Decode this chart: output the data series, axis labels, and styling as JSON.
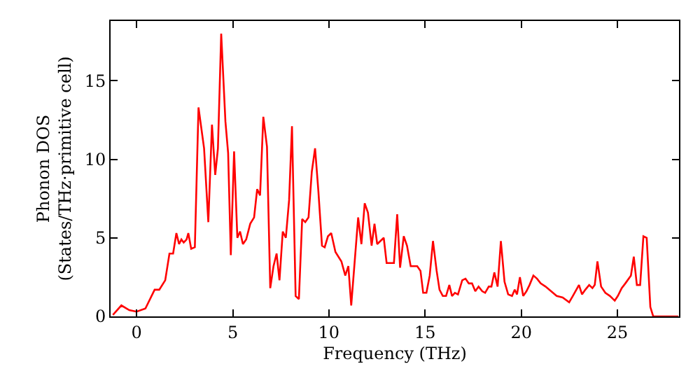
{
  "chart_data": {
    "type": "line",
    "xlabel": "Frequency (THz)",
    "ylabel": "Phonon DOS\n(States/THz·primitive cell)",
    "xlim": [
      -1.35,
      28.2
    ],
    "ylim": [
      0,
      18.8
    ],
    "xticks": [
      0,
      5,
      10,
      15,
      20,
      25
    ],
    "yticks": [
      0,
      5,
      10,
      15
    ],
    "marker": "none",
    "line_style": "solid",
    "series": [
      {
        "color": "#ff0000",
        "x": [
          -1.23,
          -0.79,
          -0.38,
          0,
          0.46,
          0.94,
          1.18,
          1.49,
          1.71,
          1.9,
          2.07,
          2.21,
          2.33,
          2.45,
          2.6,
          2.69,
          2.84,
          3.03,
          3.22,
          3.51,
          3.73,
          3.92,
          4.09,
          4.23,
          4.4,
          4.62,
          4.76,
          4.9,
          5.07,
          5.24,
          5.38,
          5.53,
          5.7,
          5.91,
          6.11,
          6.27,
          6.42,
          6.59,
          6.78,
          6.95,
          7.12,
          7.28,
          7.43,
          7.6,
          7.76,
          7.93,
          8.08,
          8.27,
          8.44,
          8.61,
          8.77,
          8.94,
          9.11,
          9.28,
          9.45,
          9.64,
          9.78,
          9.95,
          10.12,
          10.34,
          10.65,
          10.85,
          11.01,
          11.16,
          11.52,
          11.69,
          11.86,
          12.03,
          12.22,
          12.37,
          12.51,
          12.85,
          13.0,
          13.38,
          13.55,
          13.7,
          13.89,
          14.06,
          14.25,
          14.59,
          14.76,
          14.9,
          15.07,
          15.24,
          15.41,
          15.6,
          15.75,
          15.92,
          16.09,
          16.26,
          16.4,
          16.55,
          16.71,
          16.93,
          17.1,
          17.27,
          17.44,
          17.61,
          17.78,
          17.97,
          18.12,
          18.31,
          18.45,
          18.6,
          18.77,
          18.94,
          19.13,
          19.32,
          19.52,
          19.66,
          19.78,
          19.93,
          20.1,
          20.27,
          20.43,
          20.63,
          20.82,
          21.01,
          21.26,
          21.55,
          21.84,
          22.15,
          22.49,
          22.68,
          23.0,
          23.16,
          23.33,
          23.53,
          23.7,
          23.82,
          23.96,
          24.15,
          24.37,
          24.61,
          24.86,
          25.02,
          25.22,
          25.41,
          25.7,
          25.85,
          26.01,
          26.18,
          26.35,
          26.52,
          26.71,
          26.86,
          28.16
        ],
        "values": [
          0.1,
          0.7,
          0.4,
          0.3,
          0.5,
          1.7,
          1.7,
          2.3,
          4.0,
          4.0,
          5.3,
          4.6,
          4.9,
          4.7,
          4.9,
          5.3,
          4.3,
          4.4,
          13.3,
          10.7,
          6.0,
          12.2,
          9.0,
          10.7,
          18.0,
          12.4,
          10.4,
          3.9,
          10.5,
          5.0,
          5.4,
          4.6,
          4.9,
          5.9,
          6.3,
          8.1,
          7.7,
          12.7,
          10.8,
          1.8,
          3.2,
          4.0,
          2.3,
          5.4,
          5.0,
          7.4,
          12.1,
          1.3,
          1.1,
          6.2,
          6.0,
          6.3,
          9.2,
          10.7,
          8.0,
          4.5,
          4.4,
          5.1,
          5.3,
          4.1,
          3.5,
          2.6,
          3.2,
          0.7,
          6.3,
          4.6,
          7.2,
          6.6,
          4.5,
          5.9,
          4.6,
          5.0,
          3.4,
          3.4,
          6.5,
          3.1,
          5.1,
          4.5,
          3.2,
          3.2,
          2.9,
          1.5,
          1.5,
          2.6,
          4.8,
          2.9,
          1.7,
          1.3,
          1.3,
          2.0,
          1.3,
          1.5,
          1.4,
          2.3,
          2.4,
          2.1,
          2.1,
          1.6,
          1.9,
          1.6,
          1.5,
          1.9,
          1.9,
          2.8,
          1.9,
          4.8,
          2.2,
          1.4,
          1.3,
          1.7,
          1.4,
          2.5,
          1.3,
          1.6,
          2.0,
          2.6,
          2.4,
          2.1,
          1.9,
          1.6,
          1.3,
          1.2,
          0.9,
          1.3,
          2.0,
          1.4,
          1.7,
          2.0,
          1.8,
          2.0,
          3.5,
          1.9,
          1.5,
          1.3,
          1.0,
          1.3,
          1.8,
          2.1,
          2.6,
          3.8,
          2.0,
          2.0,
          5.1,
          5.0,
          0.6,
          0,
          0
        ]
      }
    ]
  }
}
